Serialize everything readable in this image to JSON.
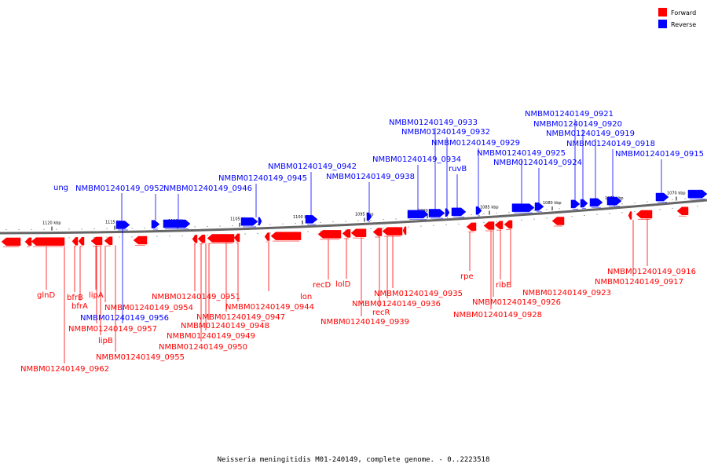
{
  "colors": {
    "forward": "#ff0000",
    "reverse": "#0000ff",
    "axis": "#666666"
  },
  "legend": [
    {
      "name": "Forward",
      "color": "#ff0000"
    },
    {
      "name": "Reverse",
      "color": "#0000ff"
    }
  ],
  "caption": "Neisseria meningitidis M01-240149, complete genome. - 0..2223518",
  "ticks": [
    "1120 kbp",
    "1115 kbp",
    "1110 kbp",
    "1105 kbp",
    "1100 kbp",
    "1095 kbp",
    "1090 kbp",
    "1085 kbp",
    "1080 kbp",
    "1075 kbp",
    "1070 kbp"
  ],
  "forward_labels": [
    "glnD",
    "NMBM01240149_0962",
    "bfrB",
    "bfrA",
    "lipA",
    "NMBM01240149_0957",
    "lipB",
    "NMBM01240149_0955",
    "NMBM01240149_0954",
    "NMBM01240149_0951",
    "NMBM01240149_0950",
    "NMBM01240149_0949",
    "NMBM01240149_0948",
    "NMBM01240149_0947",
    "NMBM01240149_0944",
    "lon",
    "recD",
    "lolD",
    "NMBM01240149_0939",
    "recR",
    "NMBM01240149_0936",
    "NMBM01240149_0935",
    "rpe",
    "NMBM01240149_0928",
    "NMBM01240149_0926",
    "ribE",
    "NMBM01240149_0923",
    "NMBM01240149_0917",
    "NMBM01240149_0916"
  ],
  "reverse_labels": [
    "ung",
    "NMBM01240149_0952",
    "NMBM01240149_0956",
    "NMBM01240149_0946",
    "NMBM01240149_0945",
    "NMBM01240149_0942",
    "NMBM01240149_0938",
    "NMBM01240149_0934",
    "NMBM01240149_0933",
    "NMBM01240149_0932",
    "ruvB",
    "NMBM01240149_0929",
    "NMBM01240149_0925",
    "NMBM01240149_0924",
    "NMBM01240149_0921",
    "NMBM01240149_0920",
    "NMBM01240149_0919",
    "NMBM01240149_0918",
    "NMBM01240149_0915"
  ]
}
